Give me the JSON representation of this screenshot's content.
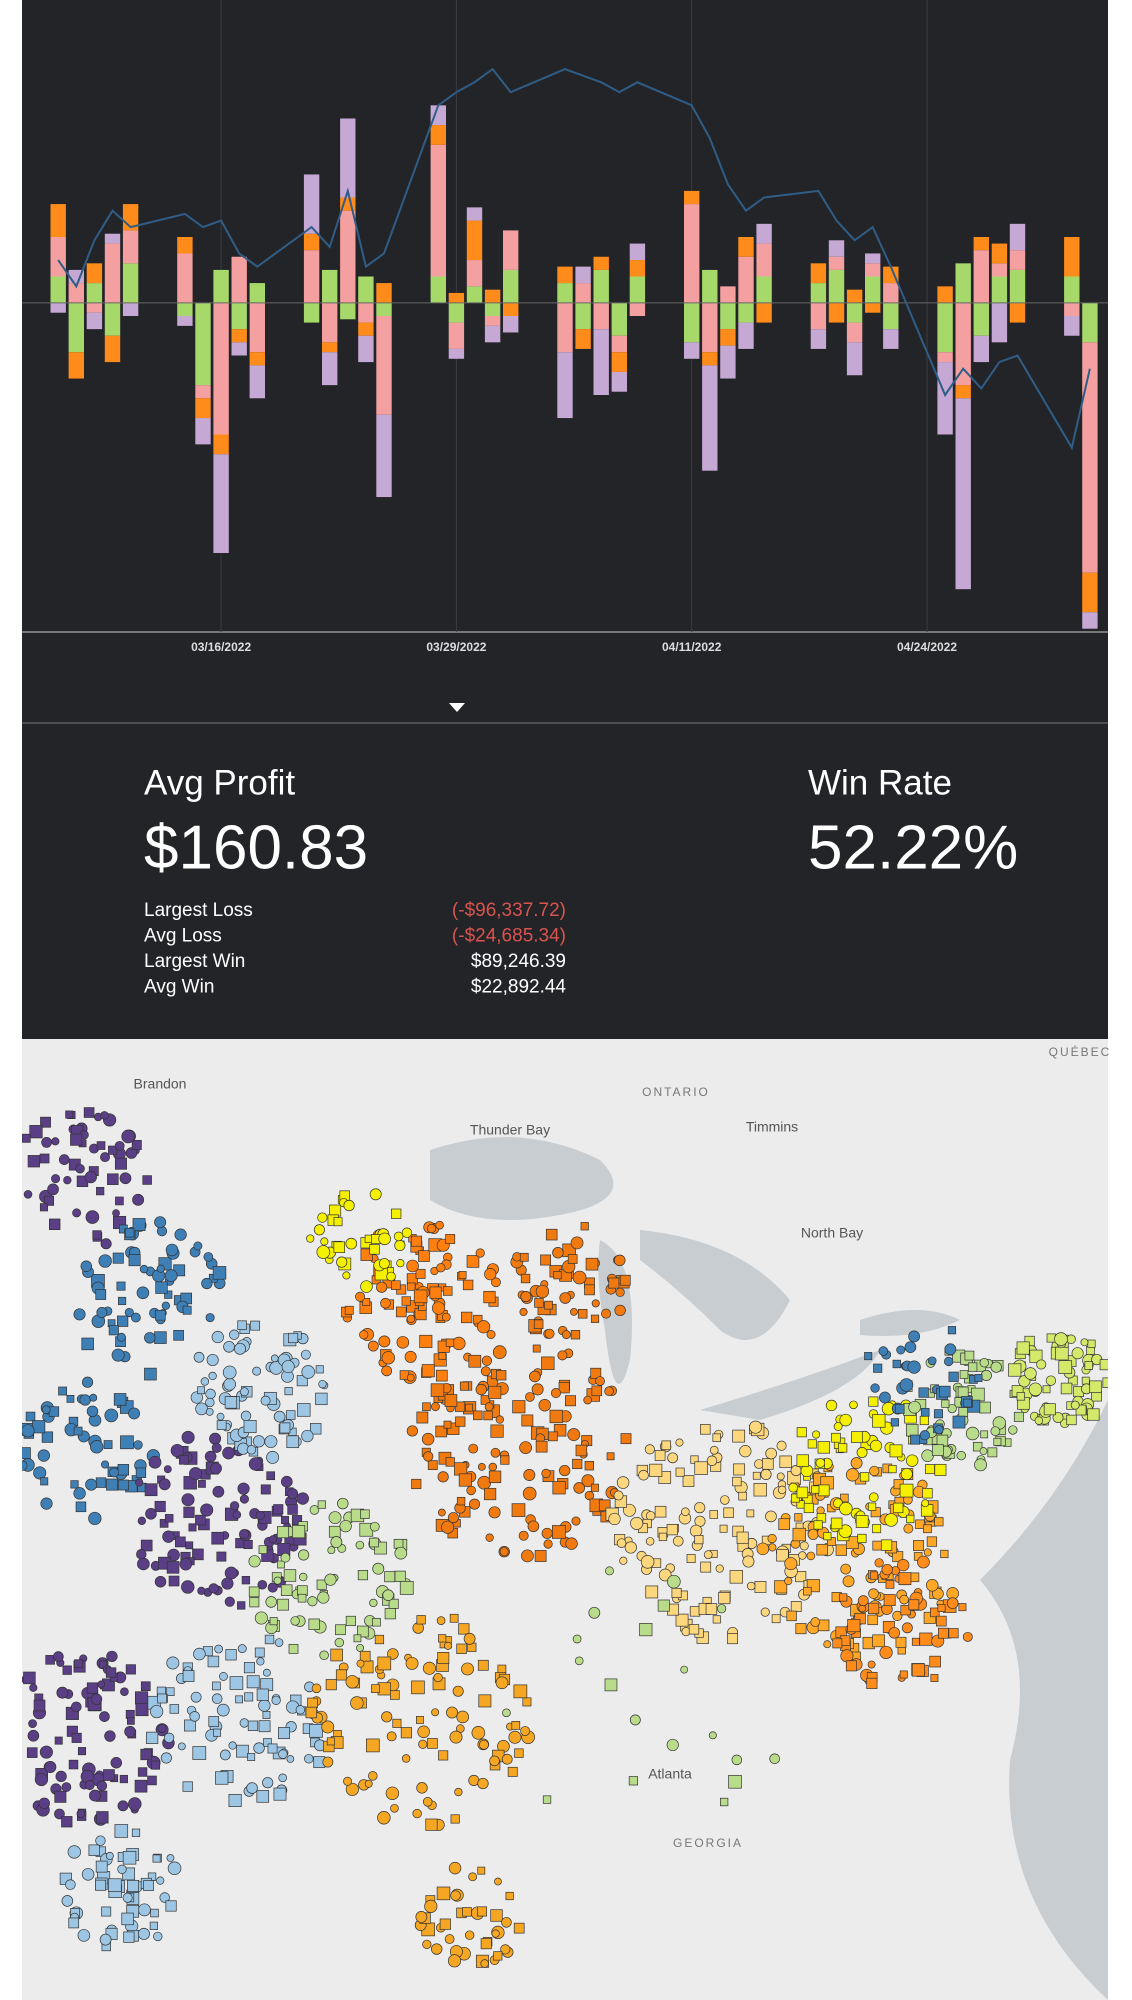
{
  "chart_data": {
    "type": "stacked-bar-line",
    "x": [
      2,
      3,
      4,
      5,
      6,
      9,
      10,
      11,
      12,
      13,
      16,
      17,
      18,
      19,
      20,
      23,
      24,
      25,
      26,
      27,
      30,
      31,
      32,
      33,
      34,
      37,
      38,
      39,
      40,
      41,
      44,
      45,
      46,
      47,
      48,
      51,
      52,
      53,
      54,
      55,
      58,
      59
    ],
    "xlim": [
      0,
      60
    ],
    "xticks": [
      {
        "value": 11,
        "label": "03/16/2022"
      },
      {
        "value": 24,
        "label": "03/29/2022"
      },
      {
        "value": 37,
        "label": "04/11/2022"
      },
      {
        "value": 50,
        "label": "04/24/2022"
      }
    ],
    "ylim": [
      -100,
      92
    ],
    "series": [
      {
        "color": "#a6d96a",
        "values": [
          8,
          -15,
          6,
          -10,
          12,
          -4,
          -25,
          10,
          -8,
          6,
          -6,
          10,
          -5,
          8,
          -4,
          8,
          -6,
          5,
          -4,
          10,
          6,
          -8,
          10,
          -10,
          8,
          -12,
          10,
          -8,
          -6,
          8,
          6,
          10,
          -6,
          8,
          -8,
          -15,
          12,
          -10,
          8,
          10,
          8,
          -12
        ]
      },
      {
        "color": "#f4a0a0",
        "values": [
          12,
          6,
          -3,
          18,
          10,
          15,
          -4,
          -40,
          14,
          -15,
          16,
          -12,
          28,
          -6,
          -30,
          40,
          -8,
          8,
          -3,
          12,
          -15,
          6,
          -8,
          -5,
          -4,
          30,
          -15,
          5,
          14,
          10,
          -8,
          4,
          -6,
          4,
          6,
          -3,
          -25,
          16,
          4,
          6,
          -4,
          -70
        ]
      },
      {
        "color": "#ff8c1a",
        "values": [
          10,
          -8,
          6,
          -8,
          8,
          5,
          -6,
          -6,
          -4,
          -4,
          5,
          -3,
          4,
          -4,
          6,
          6,
          3,
          12,
          4,
          -4,
          5,
          -6,
          4,
          -6,
          5,
          4,
          -4,
          -5,
          6,
          -6,
          6,
          -6,
          4,
          -3,
          5,
          5,
          -4,
          4,
          6,
          -6,
          12,
          -12
        ]
      },
      {
        "color": "#c5a8d4",
        "values": [
          -3,
          4,
          -5,
          3,
          -4,
          -3,
          -8,
          -30,
          -4,
          -10,
          18,
          -10,
          24,
          -8,
          -25,
          6,
          -3,
          4,
          -5,
          -5,
          -20,
          5,
          -20,
          -6,
          5,
          -5,
          -32,
          -10,
          -8,
          6,
          -6,
          5,
          -10,
          3,
          -6,
          -22,
          -58,
          -8,
          -12,
          8,
          -6,
          -5
        ]
      }
    ],
    "line": {
      "color": "#2f5d86",
      "values": [
        13,
        5,
        19,
        28,
        23,
        27,
        23,
        25,
        15,
        11,
        23,
        17,
        34,
        11,
        15,
        60,
        64,
        67,
        71,
        64,
        71,
        69,
        67,
        64,
        67,
        60,
        50,
        36,
        28,
        32,
        34,
        25,
        19,
        23,
        11,
        -28,
        -20,
        -26,
        -18,
        -16,
        -44,
        -20
      ]
    }
  },
  "stats": {
    "avg_profit_label": "Avg Profit",
    "avg_profit": "$160.83",
    "win_rate_label": "Win Rate",
    "win_rate": "52.22%",
    "rows": [
      [
        "Largest Loss",
        "(-$96,337.72)"
      ],
      [
        "Avg Loss",
        "(-$24,685.34)"
      ],
      [
        "Largest Win",
        "$89,246.39"
      ],
      [
        "Avg Win",
        "$22,892.44"
      ]
    ]
  },
  "map": {
    "labels": [
      "Brandon",
      "ONTARIO",
      "Thunder Bay",
      "Timmins",
      "North Bay",
      "QUÉBEC",
      "Atlanta",
      "GEORGIA"
    ]
  }
}
